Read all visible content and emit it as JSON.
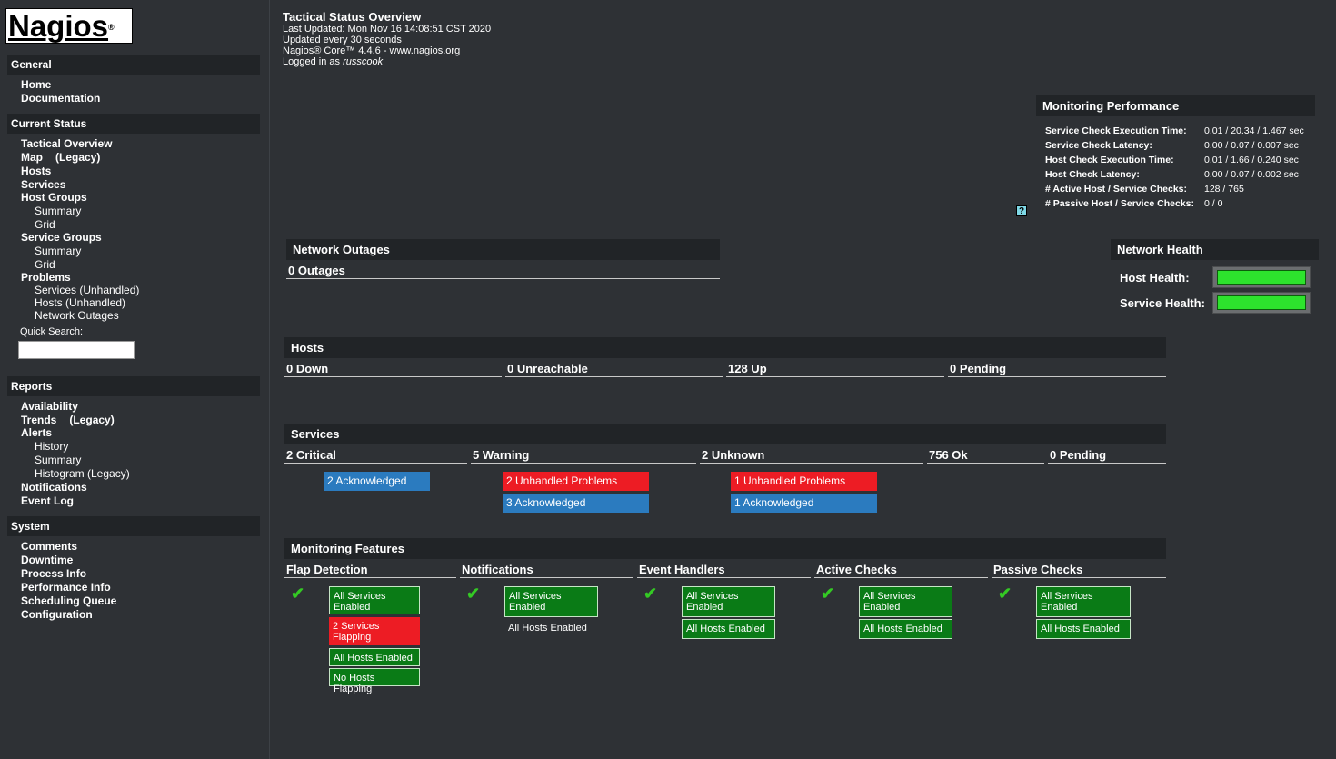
{
  "logo": {
    "text": "Nagios",
    "mark": "®"
  },
  "sidebar": {
    "general": {
      "title": "General",
      "items": [
        "Home",
        "Documentation"
      ]
    },
    "current_status": {
      "title": "Current Status",
      "tactical": "Tactical Overview",
      "map": "Map",
      "map_legacy": "(Legacy)",
      "hosts": "Hosts",
      "services": "Services",
      "host_groups": "Host Groups",
      "hg_summary": "Summary",
      "hg_grid": "Grid",
      "service_groups": "Service Groups",
      "sg_summary": "Summary",
      "sg_grid": "Grid",
      "problems": "Problems",
      "p_services": "Services (Unhandled)",
      "p_hosts": "Hosts (Unhandled)",
      "p_outages": "Network Outages",
      "quick_search": "Quick Search:"
    },
    "reports": {
      "title": "Reports",
      "availability": "Availability",
      "trends": "Trends",
      "trends_legacy": "(Legacy)",
      "alerts": "Alerts",
      "history": "History",
      "summary": "Summary",
      "histogram": "Histogram (Legacy)",
      "notifications": "Notifications",
      "event_log": "Event Log"
    },
    "system": {
      "title": "System",
      "items": [
        "Comments",
        "Downtime",
        "Process Info",
        "Performance Info",
        "Scheduling Queue",
        "Configuration"
      ]
    }
  },
  "header": {
    "title": "Tactical Status Overview",
    "last_updated": "Last Updated: Mon Nov 16 14:08:51 CST 2020",
    "interval": "Updated every 30 seconds",
    "version": "Nagios® Core™ 4.4.6 - www.nagios.org",
    "logged_prefix": "Logged in as ",
    "user": "russcook"
  },
  "perf": {
    "title": "Monitoring Performance",
    "rows": [
      {
        "label": "Service Check Execution Time:",
        "value": "0.01 / 20.34 / 1.467 sec"
      },
      {
        "label": "Service Check Latency:",
        "value": "0.00 / 0.07 / 0.007 sec"
      },
      {
        "label": "Host Check Execution Time:",
        "value": "0.01 / 1.66 / 0.240 sec"
      },
      {
        "label": "Host Check Latency:",
        "value": "0.00 / 0.07 / 0.002 sec"
      },
      {
        "label": "# Active Host / Service Checks:",
        "value": "128 / 765"
      },
      {
        "label": "# Passive Host / Service Checks:",
        "value": "0 / 0"
      }
    ],
    "help": "?"
  },
  "outages": {
    "title": "Network Outages",
    "value": "0 Outages"
  },
  "health": {
    "title": "Network Health",
    "host": "Host Health:",
    "service": "Service Health:",
    "host_level": 1.0,
    "service_level": 1.0
  },
  "hosts": {
    "title": "Hosts",
    "down": "0 Down",
    "unreachable": "0 Unreachable",
    "up": "128 Up",
    "pending": "0 Pending"
  },
  "services": {
    "title": "Services",
    "critical": "2 Critical",
    "warning": "5 Warning",
    "unknown": "2 Unknown",
    "ok": "756 Ok",
    "pending": "0 Pending",
    "crit_ack": "2 Acknowledged",
    "warn_unhandled": "2 Unhandled Problems",
    "warn_ack": "3 Acknowledged",
    "unk_unhandled": "1 Unhandled Problems",
    "unk_ack": "1 Acknowledged"
  },
  "features": {
    "title": "Monitoring Features",
    "flap": {
      "title": "Flap Detection",
      "a": "All Services Enabled",
      "b": "2 Services Flapping",
      "c": "All Hosts Enabled",
      "d": "No Hosts Flapping"
    },
    "notif": {
      "title": "Notifications",
      "a": "All Services Enabled",
      "b": "All Hosts Enabled"
    },
    "event": {
      "title": "Event Handlers",
      "a": "All Services Enabled",
      "b": "All Hosts Enabled"
    },
    "active": {
      "title": "Active Checks",
      "a": "All Services Enabled",
      "b": "All Hosts Enabled"
    },
    "passive": {
      "title": "Passive Checks",
      "a": "All Services Enabled",
      "b": "All Hosts Enabled"
    }
  },
  "colors": {
    "bg": "#2e3135",
    "header": "#212427",
    "blue": "#2b7bbf",
    "red": "#ed1c24",
    "green": "#0a7b16",
    "health": "#2de32d"
  }
}
